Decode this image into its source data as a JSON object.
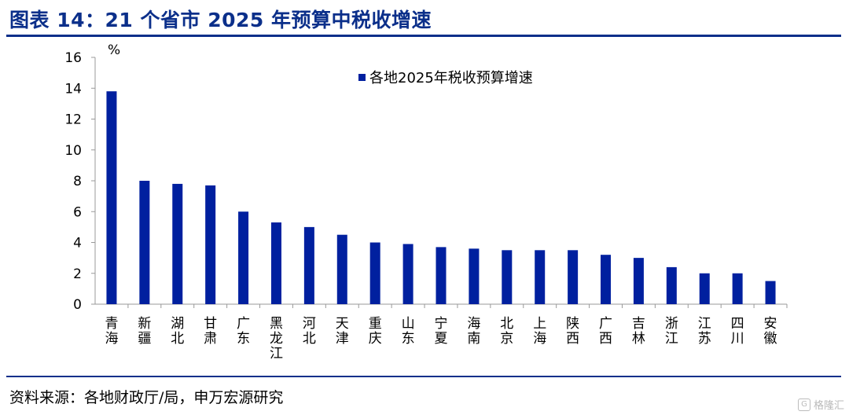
{
  "header": {
    "title": "图表 14：21 个省市 2025 年预算中税收增速"
  },
  "footer": {
    "source": "资料来源：各地财政厅/局，申万宏源研究"
  },
  "watermark": {
    "text": "格隆汇",
    "icon": "G"
  },
  "chart_data": {
    "type": "bar",
    "title": "",
    "xlabel": "",
    "ylabel": "%",
    "ylim": [
      0,
      16
    ],
    "yticks": [
      0,
      2,
      4,
      6,
      8,
      10,
      12,
      14,
      16
    ],
    "grid": false,
    "legend_position": "top-center",
    "categories": [
      "青海",
      "新疆",
      "湖北",
      "甘肃",
      "广东",
      "黑龙江",
      "河北",
      "天津",
      "重庆",
      "山东",
      "宁夏",
      "海南",
      "北京",
      "上海",
      "陕西",
      "广西",
      "吉林",
      "浙江",
      "江苏",
      "四川",
      "安徽"
    ],
    "series": [
      {
        "name": "各地2025年税收预算增速",
        "color": "#00209f",
        "values": [
          13.8,
          8.0,
          7.8,
          7.7,
          6.0,
          5.3,
          5.0,
          4.5,
          4.0,
          3.9,
          3.7,
          3.6,
          3.5,
          3.5,
          3.5,
          3.2,
          3.0,
          2.4,
          2.0,
          2.0,
          1.5
        ]
      }
    ]
  }
}
